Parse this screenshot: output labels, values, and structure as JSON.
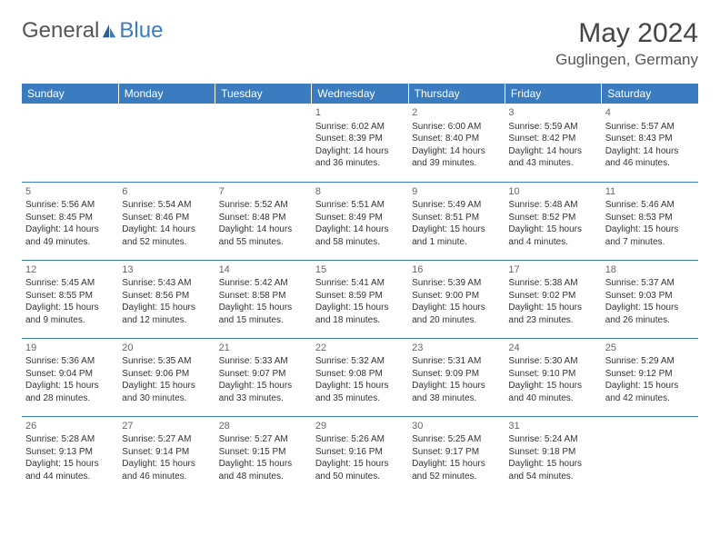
{
  "logo": {
    "part1": "General",
    "part2": "Blue"
  },
  "title": "May 2024",
  "location": "Guglingen, Germany",
  "colors": {
    "header_bg": "#3b7bbf",
    "header_text": "#ffffff",
    "row_divider": "#3b7bbf",
    "text": "#333333",
    "daynum": "#666666",
    "page_bg": "#ffffff"
  },
  "day_headers": [
    "Sunday",
    "Monday",
    "Tuesday",
    "Wednesday",
    "Thursday",
    "Friday",
    "Saturday"
  ],
  "weeks": [
    [
      {
        "n": "",
        "sr": "",
        "ss": "",
        "dl": ""
      },
      {
        "n": "",
        "sr": "",
        "ss": "",
        "dl": ""
      },
      {
        "n": "",
        "sr": "",
        "ss": "",
        "dl": ""
      },
      {
        "n": "1",
        "sr": "Sunrise: 6:02 AM",
        "ss": "Sunset: 8:39 PM",
        "dl": "Daylight: 14 hours and 36 minutes."
      },
      {
        "n": "2",
        "sr": "Sunrise: 6:00 AM",
        "ss": "Sunset: 8:40 PM",
        "dl": "Daylight: 14 hours and 39 minutes."
      },
      {
        "n": "3",
        "sr": "Sunrise: 5:59 AM",
        "ss": "Sunset: 8:42 PM",
        "dl": "Daylight: 14 hours and 43 minutes."
      },
      {
        "n": "4",
        "sr": "Sunrise: 5:57 AM",
        "ss": "Sunset: 8:43 PM",
        "dl": "Daylight: 14 hours and 46 minutes."
      }
    ],
    [
      {
        "n": "5",
        "sr": "Sunrise: 5:56 AM",
        "ss": "Sunset: 8:45 PM",
        "dl": "Daylight: 14 hours and 49 minutes."
      },
      {
        "n": "6",
        "sr": "Sunrise: 5:54 AM",
        "ss": "Sunset: 8:46 PM",
        "dl": "Daylight: 14 hours and 52 minutes."
      },
      {
        "n": "7",
        "sr": "Sunrise: 5:52 AM",
        "ss": "Sunset: 8:48 PM",
        "dl": "Daylight: 14 hours and 55 minutes."
      },
      {
        "n": "8",
        "sr": "Sunrise: 5:51 AM",
        "ss": "Sunset: 8:49 PM",
        "dl": "Daylight: 14 hours and 58 minutes."
      },
      {
        "n": "9",
        "sr": "Sunrise: 5:49 AM",
        "ss": "Sunset: 8:51 PM",
        "dl": "Daylight: 15 hours and 1 minute."
      },
      {
        "n": "10",
        "sr": "Sunrise: 5:48 AM",
        "ss": "Sunset: 8:52 PM",
        "dl": "Daylight: 15 hours and 4 minutes."
      },
      {
        "n": "11",
        "sr": "Sunrise: 5:46 AM",
        "ss": "Sunset: 8:53 PM",
        "dl": "Daylight: 15 hours and 7 minutes."
      }
    ],
    [
      {
        "n": "12",
        "sr": "Sunrise: 5:45 AM",
        "ss": "Sunset: 8:55 PM",
        "dl": "Daylight: 15 hours and 9 minutes."
      },
      {
        "n": "13",
        "sr": "Sunrise: 5:43 AM",
        "ss": "Sunset: 8:56 PM",
        "dl": "Daylight: 15 hours and 12 minutes."
      },
      {
        "n": "14",
        "sr": "Sunrise: 5:42 AM",
        "ss": "Sunset: 8:58 PM",
        "dl": "Daylight: 15 hours and 15 minutes."
      },
      {
        "n": "15",
        "sr": "Sunrise: 5:41 AM",
        "ss": "Sunset: 8:59 PM",
        "dl": "Daylight: 15 hours and 18 minutes."
      },
      {
        "n": "16",
        "sr": "Sunrise: 5:39 AM",
        "ss": "Sunset: 9:00 PM",
        "dl": "Daylight: 15 hours and 20 minutes."
      },
      {
        "n": "17",
        "sr": "Sunrise: 5:38 AM",
        "ss": "Sunset: 9:02 PM",
        "dl": "Daylight: 15 hours and 23 minutes."
      },
      {
        "n": "18",
        "sr": "Sunrise: 5:37 AM",
        "ss": "Sunset: 9:03 PM",
        "dl": "Daylight: 15 hours and 26 minutes."
      }
    ],
    [
      {
        "n": "19",
        "sr": "Sunrise: 5:36 AM",
        "ss": "Sunset: 9:04 PM",
        "dl": "Daylight: 15 hours and 28 minutes."
      },
      {
        "n": "20",
        "sr": "Sunrise: 5:35 AM",
        "ss": "Sunset: 9:06 PM",
        "dl": "Daylight: 15 hours and 30 minutes."
      },
      {
        "n": "21",
        "sr": "Sunrise: 5:33 AM",
        "ss": "Sunset: 9:07 PM",
        "dl": "Daylight: 15 hours and 33 minutes."
      },
      {
        "n": "22",
        "sr": "Sunrise: 5:32 AM",
        "ss": "Sunset: 9:08 PM",
        "dl": "Daylight: 15 hours and 35 minutes."
      },
      {
        "n": "23",
        "sr": "Sunrise: 5:31 AM",
        "ss": "Sunset: 9:09 PM",
        "dl": "Daylight: 15 hours and 38 minutes."
      },
      {
        "n": "24",
        "sr": "Sunrise: 5:30 AM",
        "ss": "Sunset: 9:10 PM",
        "dl": "Daylight: 15 hours and 40 minutes."
      },
      {
        "n": "25",
        "sr": "Sunrise: 5:29 AM",
        "ss": "Sunset: 9:12 PM",
        "dl": "Daylight: 15 hours and 42 minutes."
      }
    ],
    [
      {
        "n": "26",
        "sr": "Sunrise: 5:28 AM",
        "ss": "Sunset: 9:13 PM",
        "dl": "Daylight: 15 hours and 44 minutes."
      },
      {
        "n": "27",
        "sr": "Sunrise: 5:27 AM",
        "ss": "Sunset: 9:14 PM",
        "dl": "Daylight: 15 hours and 46 minutes."
      },
      {
        "n": "28",
        "sr": "Sunrise: 5:27 AM",
        "ss": "Sunset: 9:15 PM",
        "dl": "Daylight: 15 hours and 48 minutes."
      },
      {
        "n": "29",
        "sr": "Sunrise: 5:26 AM",
        "ss": "Sunset: 9:16 PM",
        "dl": "Daylight: 15 hours and 50 minutes."
      },
      {
        "n": "30",
        "sr": "Sunrise: 5:25 AM",
        "ss": "Sunset: 9:17 PM",
        "dl": "Daylight: 15 hours and 52 minutes."
      },
      {
        "n": "31",
        "sr": "Sunrise: 5:24 AM",
        "ss": "Sunset: 9:18 PM",
        "dl": "Daylight: 15 hours and 54 minutes."
      },
      {
        "n": "",
        "sr": "",
        "ss": "",
        "dl": ""
      }
    ]
  ]
}
